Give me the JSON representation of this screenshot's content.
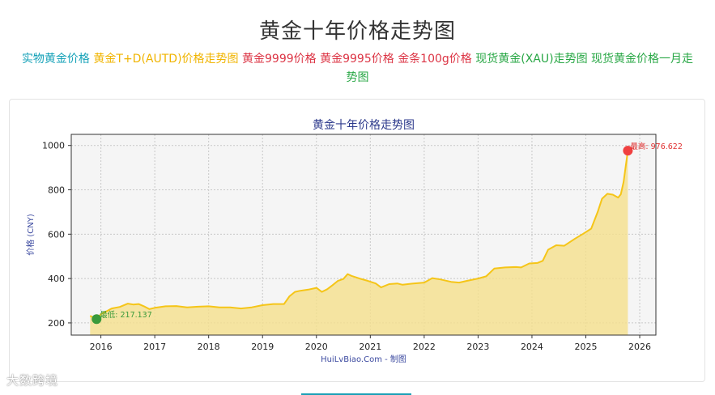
{
  "page": {
    "title": "黄金十年价格走势图"
  },
  "nav": [
    {
      "label": "实物黄金价格",
      "color": "#17a2b8"
    },
    {
      "label": "黄金T+D(AUTD)价格走势图",
      "color": "#f0b400"
    },
    {
      "label": "黄金9999价格",
      "color": "#dc3545"
    },
    {
      "label": "黄金9995价格",
      "color": "#dc3545"
    },
    {
      "label": "金条100g价格",
      "color": "#dc3545"
    },
    {
      "label": "现货黄金(XAU)走势图",
      "color": "#28a745"
    },
    {
      "label": "现货黄金价格一月走势图",
      "color": "#28a745"
    }
  ],
  "watermark": "大数跨境",
  "chart_data": {
    "type": "area",
    "title": "黄金十年价格走势图",
    "ylabel": "价格 (CNY)",
    "xlabel": "HuiLvBiao.Com - 制图",
    "xlim": [
      2015.45,
      2026.3
    ],
    "ylim": [
      145,
      1050
    ],
    "xticks": [
      2016,
      2017,
      2018,
      2019,
      2020,
      2021,
      2022,
      2023,
      2024,
      2025,
      2026
    ],
    "yticks": [
      200,
      400,
      600,
      800,
      1000
    ],
    "grid": true,
    "line_color": "#f5c518",
    "fill_color": "#f5e08c",
    "max_label": "最高: 976.622",
    "min_label": "最低: 217.137",
    "max_point": {
      "x": 2025.78,
      "y": 976.622
    },
    "min_point": {
      "x": 2015.92,
      "y": 217.137
    },
    "series": [
      {
        "x": [
          2015.8,
          2015.92,
          2016.0,
          2016.1,
          2016.2,
          2016.35,
          2016.5,
          2016.6,
          2016.7,
          2016.8,
          2016.9,
          2017.0,
          2017.2,
          2017.4,
          2017.6,
          2017.8,
          2018.0,
          2018.2,
          2018.4,
          2018.6,
          2018.8,
          2019.0,
          2019.2,
          2019.4,
          2019.5,
          2019.6,
          2019.7,
          2019.85,
          2020.0,
          2020.1,
          2020.2,
          2020.3,
          2020.4,
          2020.5,
          2020.58,
          2020.65,
          2020.8,
          2020.95,
          2021.1,
          2021.2,
          2021.35,
          2021.5,
          2021.6,
          2021.8,
          2022.0,
          2022.15,
          2022.3,
          2022.5,
          2022.65,
          2022.8,
          2022.9,
          2023.0,
          2023.15,
          2023.3,
          2023.5,
          2023.7,
          2023.8,
          2023.95,
          2024.1,
          2024.2,
          2024.3,
          2024.45,
          2024.6,
          2024.8,
          2024.95,
          2025.1,
          2025.22,
          2025.3,
          2025.4,
          2025.5,
          2025.6,
          2025.65,
          2025.7,
          2025.74,
          2025.78
        ],
        "y": [
          232,
          217,
          240,
          252,
          265,
          272,
          287,
          283,
          285,
          275,
          262,
          268,
          275,
          276,
          270,
          273,
          275,
          270,
          270,
          265,
          270,
          280,
          285,
          285,
          320,
          340,
          345,
          350,
          358,
          340,
          352,
          370,
          390,
          398,
          420,
          412,
          400,
          390,
          378,
          360,
          375,
          378,
          372,
          378,
          382,
          402,
          396,
          385,
          382,
          390,
          395,
          400,
          410,
          445,
          450,
          452,
          450,
          468,
          470,
          480,
          530,
          550,
          548,
          580,
          602,
          625,
          700,
          760,
          782,
          778,
          765,
          780,
          835,
          905,
          976.622
        ]
      }
    ]
  }
}
